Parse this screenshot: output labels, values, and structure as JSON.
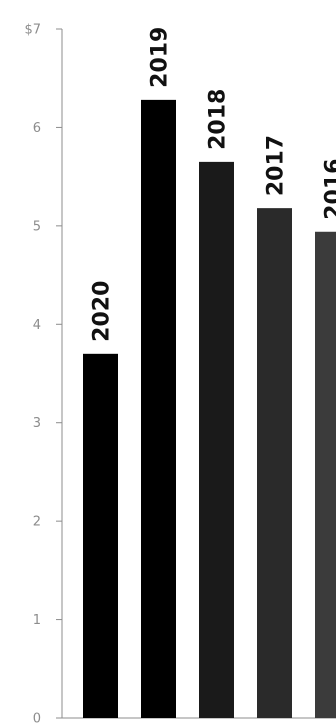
{
  "chart_data": {
    "type": "bar",
    "orientation": "vertical",
    "title": "",
    "xlabel": "",
    "ylabel": "",
    "ylim": [
      0,
      7
    ],
    "y_ticks": [
      0,
      1,
      2,
      3,
      4,
      5,
      6,
      7
    ],
    "y_tick_labels": [
      "0",
      "1",
      "2",
      "3",
      "4",
      "5",
      "6",
      "$7"
    ],
    "grid": false,
    "legend": "none",
    "categories": [
      "2020",
      "2019",
      "2018",
      "2017",
      "2016"
    ],
    "values": [
      3.7,
      6.28,
      5.65,
      5.18,
      4.94
    ],
    "colors": [
      "#000000",
      "#000000",
      "#1a1a1a",
      "#2a2a2a",
      "#3b3b3b"
    ],
    "axis_color": "#8c8c8c",
    "label_color": "#111111"
  }
}
